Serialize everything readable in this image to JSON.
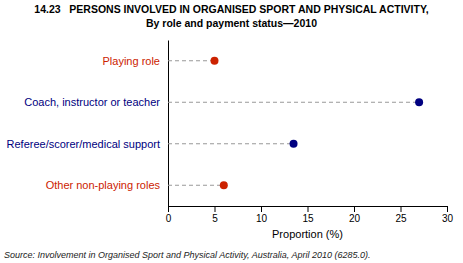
{
  "chart_data": {
    "type": "dot",
    "title": "14.23   PERSONS INVOLVED IN ORGANISED SPORT AND PHYSICAL ACTIVITY,",
    "subtitle": "By role and payment status—2010",
    "categories": [
      "Playing role",
      "Coach, instructor or teacher",
      "Referee/scorer/medical support",
      "Other non-playing roles"
    ],
    "values": [
      5.0,
      27.0,
      13.5,
      6.0
    ],
    "colors": [
      "#cc2200",
      "#000080",
      "#000080",
      "#cc2200"
    ],
    "orientation": "horizontal",
    "xlabel": "Proportion (%)",
    "xlim": [
      0,
      30
    ],
    "xticks": [
      0,
      5,
      10,
      15,
      20,
      25,
      30
    ],
    "annotations": [
      "Source: Involvement in Organised Sport and Physical Activity, Australia, April 2010 (6285.0)."
    ]
  }
}
